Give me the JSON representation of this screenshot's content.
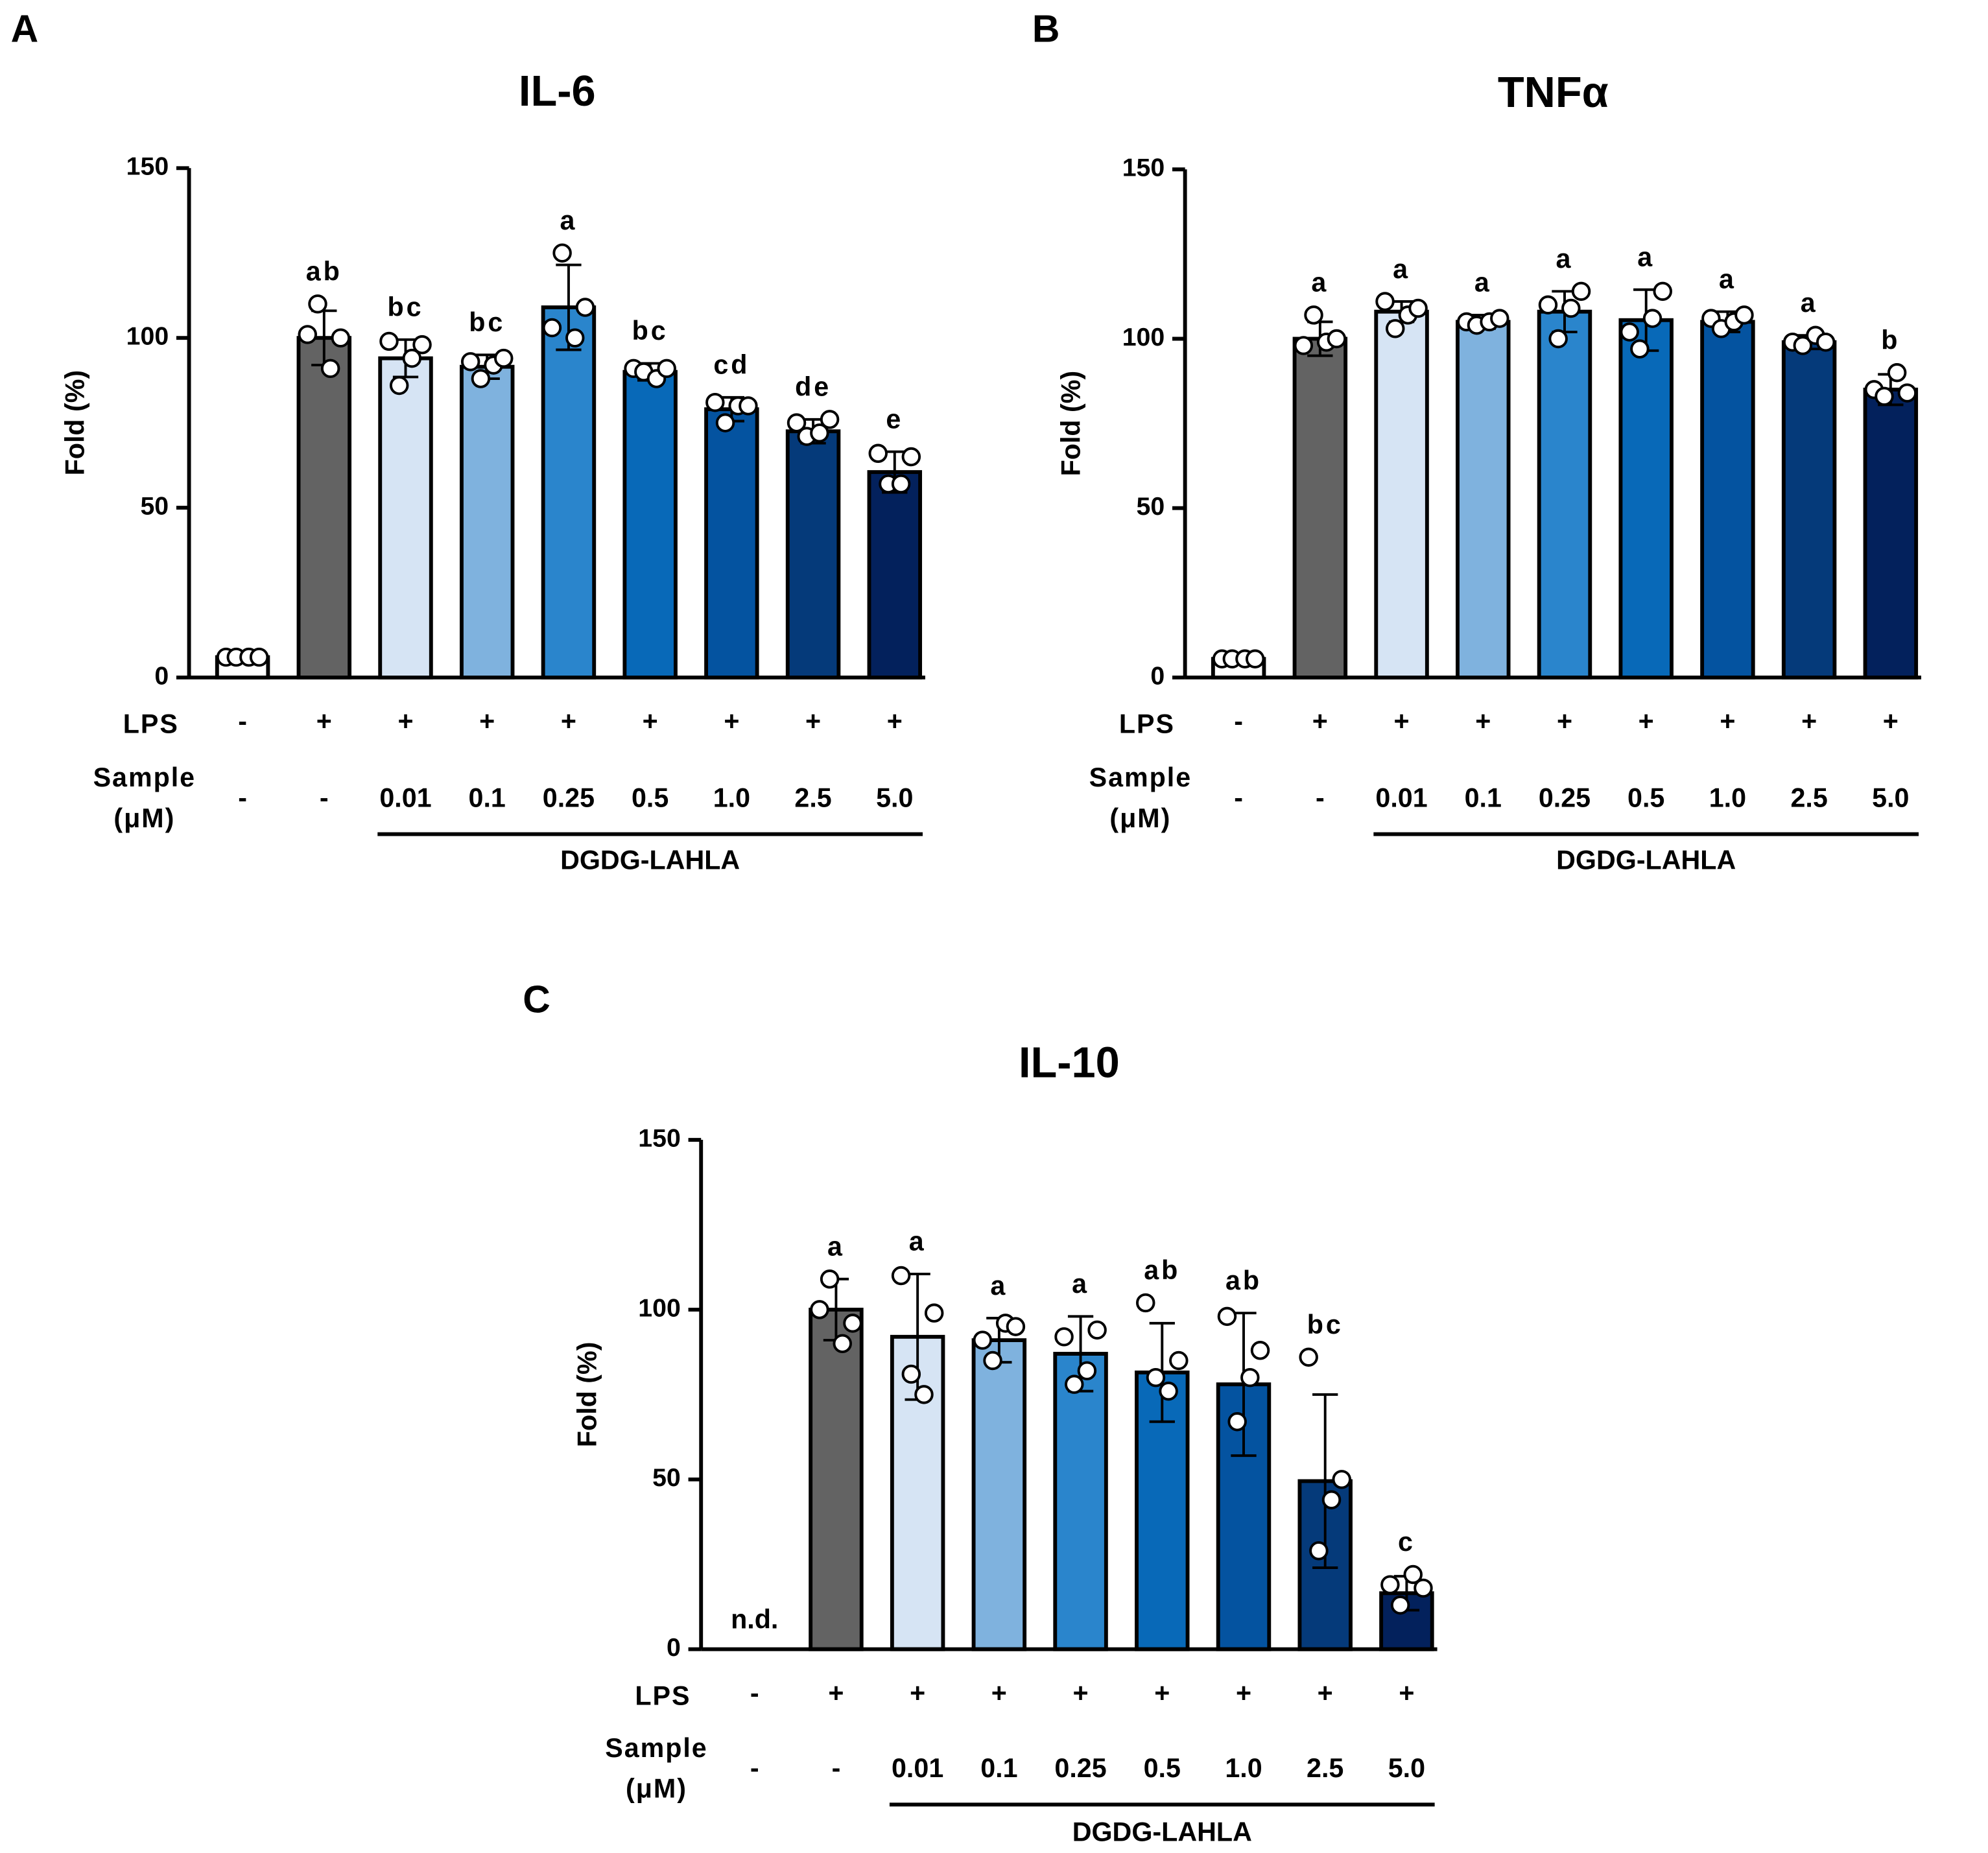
{
  "chart_data": [
    {
      "type": "bar",
      "panel": "A",
      "title": "IL-6",
      "y_label": "Fold (%)",
      "ylim": [
        0,
        150
      ],
      "yticks": [
        0,
        50,
        100,
        150
      ],
      "row_labels": [
        "LPS",
        "Sample",
        "(μM)"
      ],
      "lps": [
        "-",
        "+",
        "+",
        "+",
        "+",
        "+",
        "+",
        "+",
        "+"
      ],
      "categories": [
        "-",
        "-",
        "0.01",
        "0.1",
        "0.25",
        "0.5",
        "1.0",
        "2.5",
        "5.0"
      ],
      "group_label": "DGDG-LAHLA",
      "colors": [
        "#ffffff",
        "#636363",
        "#d6e4f4",
        "#7fb2de",
        "#2a85cc",
        "#0869b8",
        "#0453a0",
        "#053a7a",
        "#03215c"
      ],
      "values": [
        6,
        100,
        94,
        91.5,
        109,
        90,
        79,
        72.5,
        60.5
      ],
      "errors": [
        0.5,
        8,
        5.5,
        3.5,
        12.5,
        2.5,
        3.5,
        3.5,
        6
      ],
      "letters": [
        null,
        "ab",
        "bc",
        "bc",
        "a",
        "bc",
        "cd",
        "de",
        "e"
      ],
      "points": [
        [
          6,
          6,
          6,
          6
        ],
        [
          101,
          110,
          91,
          100
        ],
        [
          99,
          86,
          94,
          98
        ],
        [
          93,
          88,
          92,
          94
        ],
        [
          103,
          125,
          100,
          109
        ],
        [
          91,
          90,
          88,
          91
        ],
        [
          81,
          75,
          80,
          80
        ],
        [
          75,
          71,
          72,
          76
        ],
        [
          66,
          57,
          57,
          65
        ]
      ]
    },
    {
      "type": "bar",
      "panel": "B",
      "title": "TNFα",
      "y_label": "Fold (%)",
      "ylim": [
        0,
        150
      ],
      "yticks": [
        0,
        50,
        100,
        150
      ],
      "row_labels": [
        "LPS",
        "Sample",
        "(μM)"
      ],
      "lps": [
        "-",
        "+",
        "+",
        "+",
        "+",
        "+",
        "+",
        "+",
        "+"
      ],
      "categories": [
        "-",
        "-",
        "0.01",
        "0.1",
        "0.25",
        "0.5",
        "1.0",
        "2.5",
        "5.0"
      ],
      "group_label": "DGDG-LAHLA",
      "colors": [
        "#ffffff",
        "#636363",
        "#d6e4f4",
        "#7fb2de",
        "#2a85cc",
        "#0869b8",
        "#0453a0",
        "#053a7a",
        "#03215c"
      ],
      "values": [
        5.5,
        100,
        108,
        105,
        108,
        105.5,
        105,
        99,
        85
      ],
      "errors": [
        0.5,
        5,
        3,
        2,
        6,
        9,
        3,
        2,
        4.5
      ],
      "letters": [
        null,
        "a",
        "a",
        "a",
        "a",
        "a",
        "a",
        "a",
        "b"
      ],
      "points": [
        [
          5.5,
          5.5,
          5.5,
          5.5
        ],
        [
          98,
          107,
          99,
          100
        ],
        [
          111,
          103,
          107,
          109
        ],
        [
          105,
          104,
          105,
          106
        ],
        [
          110,
          100,
          109,
          114
        ],
        [
          102,
          97,
          106,
          114
        ],
        [
          106,
          103,
          105,
          107
        ],
        [
          99,
          98,
          101,
          99
        ],
        [
          85,
          83,
          90,
          84
        ]
      ]
    },
    {
      "type": "bar",
      "panel": "C",
      "title": "IL-10",
      "y_label": "Fold (%)",
      "ylim": [
        0,
        150
      ],
      "yticks": [
        0,
        50,
        100,
        150
      ],
      "row_labels": [
        "LPS",
        "Sample",
        "(μM)"
      ],
      "lps": [
        "-",
        "+",
        "+",
        "+",
        "+",
        "+",
        "+",
        "+",
        "+"
      ],
      "categories": [
        "-",
        "-",
        "0.01",
        "0.1",
        "0.25",
        "0.5",
        "1.0",
        "2.5",
        "5.0"
      ],
      "group_label": "DGDG-LAHLA",
      "annotation": "n.d.",
      "colors": [
        "#ffffff",
        "#636363",
        "#d6e4f4",
        "#7fb2de",
        "#2a85cc",
        "#0869b8",
        "#0453a0",
        "#053a7a",
        "#03215c"
      ],
      "values": [
        null,
        100,
        92,
        91,
        87,
        81.5,
        78,
        49.5,
        16.5
      ],
      "errors": [
        null,
        9,
        18.5,
        6.5,
        11,
        14.5,
        21,
        25.5,
        5
      ],
      "letters": [
        null,
        "a",
        "a",
        "a",
        "a",
        "ab",
        "ab",
        "bc",
        "c"
      ],
      "points": [
        null,
        [
          100,
          109,
          90,
          96
        ],
        [
          110,
          81,
          75,
          99
        ],
        [
          91,
          85,
          96,
          95
        ],
        [
          92,
          78,
          82,
          94
        ],
        [
          102,
          80,
          76,
          85
        ],
        [
          98,
          67,
          80,
          88
        ],
        [
          86,
          29,
          44,
          50
        ],
        [
          19,
          13,
          22,
          18
        ]
      ]
    }
  ]
}
